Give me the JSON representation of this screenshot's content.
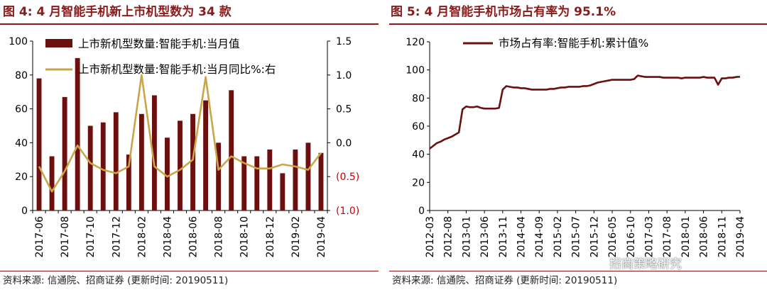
{
  "left_panel": {
    "title": "图 4:  4 月智能手机新上市机型数为 34 款",
    "source": "资料来源: 信通院、招商证券 (更新时间: 20190511)"
  },
  "right_panel": {
    "title": "图 5:  4 月智能手机市场占有率为 95.1%",
    "source": "资料来源: 信通院、招商证券 (更新时间: 20190511)"
  },
  "watermark": "招商策略研究",
  "colors": {
    "bar": "#6b0f0f",
    "gold": "#c9a64a",
    "line": "#6b0f0f",
    "title": "#8b1a1a",
    "negative": "#cc0000"
  },
  "chart_data": [
    {
      "type": "bar",
      "categories": [
        "2017-06",
        "2017-07",
        "2017-08",
        "2017-09",
        "2017-10",
        "2017-11",
        "2017-12",
        "2018-01",
        "2018-02",
        "2018-03",
        "2018-04",
        "2018-05",
        "2018-06",
        "2018-07",
        "2018-08",
        "2018-09",
        "2018-10",
        "2018-11",
        "2018-12",
        "2019-01",
        "2019-02",
        "2019-03",
        "2019-04"
      ],
      "x_tick_labels": [
        "2017-06",
        "2017-08",
        "2017-10",
        "2017-12",
        "2018-02",
        "2018-04",
        "2018-06",
        "2018-08",
        "2018-10",
        "2018-12",
        "2019-02",
        "2019-04"
      ],
      "series": [
        {
          "name": "上市新机型数量:智能手机:当月值",
          "axis": "left",
          "values": [
            78,
            32,
            67,
            90,
            50,
            52,
            58,
            33,
            57,
            68,
            43,
            53,
            57,
            65,
            40,
            71,
            32,
            32,
            36,
            22,
            36,
            40,
            34
          ]
        },
        {
          "name": "上市新机型数量:智能手机:当月同比%:右",
          "axis": "right",
          "type": "line",
          "values": [
            -0.35,
            -0.72,
            -0.42,
            -0.04,
            -0.3,
            -0.4,
            -0.45,
            -0.35,
            1.0,
            -0.35,
            -0.5,
            -0.4,
            -0.25,
            0.97,
            -0.4,
            -0.2,
            -0.3,
            -0.38,
            -0.38,
            -0.32,
            -0.35,
            -0.4,
            -0.15
          ]
        }
      ],
      "ylim_left": [
        0,
        100
      ],
      "left_ticks": [
        "0",
        "20",
        "40",
        "60",
        "80",
        "100"
      ],
      "ylim_right": [
        -1.0,
        1.5
      ],
      "right_ticks": [
        {
          "v": 1.5,
          "label": "1.5"
        },
        {
          "v": 1.0,
          "label": "1.0"
        },
        {
          "v": 0.5,
          "label": "0.5"
        },
        {
          "v": 0.0,
          "label": "0.0"
        },
        {
          "v": -0.5,
          "label": "(0.5)"
        },
        {
          "v": -1.0,
          "label": "(1.0)"
        }
      ],
      "legend_position": "top"
    },
    {
      "type": "line",
      "x": [
        "2012-03",
        "2012-04",
        "2012-05",
        "2012-06",
        "2012-07",
        "2012-08",
        "2012-09",
        "2012-10",
        "2012-11",
        "2012-12",
        "2013-01",
        "2013-02",
        "2013-03",
        "2013-04",
        "2013-05",
        "2013-06",
        "2013-07",
        "2013-08",
        "2013-09",
        "2013-10",
        "2013-11",
        "2013-12",
        "2014-01",
        "2014-02",
        "2014-03",
        "2014-04",
        "2014-05",
        "2014-06",
        "2014-07",
        "2014-08",
        "2014-09",
        "2014-10",
        "2014-11",
        "2014-12",
        "2015-01",
        "2015-02",
        "2015-03",
        "2015-04",
        "2015-05",
        "2015-06",
        "2015-07",
        "2015-08",
        "2015-09",
        "2015-10",
        "2015-11",
        "2015-12",
        "2016-01",
        "2016-02",
        "2016-03",
        "2016-04",
        "2016-05",
        "2016-06",
        "2016-07",
        "2016-08",
        "2016-09",
        "2016-10",
        "2016-11",
        "2016-12",
        "2017-01",
        "2017-02",
        "2017-03",
        "2017-04",
        "2017-05",
        "2017-06",
        "2017-07",
        "2017-08",
        "2017-09",
        "2017-10",
        "2017-11",
        "2017-12",
        "2018-01",
        "2018-02",
        "2018-03",
        "2018-04",
        "2018-05",
        "2018-06",
        "2018-07",
        "2018-08",
        "2018-09",
        "2018-10",
        "2018-11",
        "2018-12",
        "2019-01",
        "2019-02",
        "2019-03",
        "2019-04"
      ],
      "x_tick_labels": [
        "2012-03",
        "2012-08",
        "2013-01",
        "2013-06",
        "2013-11",
        "2014-04",
        "2014-09",
        "2015-02",
        "2015-07",
        "2015-12",
        "2016-05",
        "2016-10",
        "2017-03",
        "2017-08",
        "2018-01",
        "2018-06",
        "2018-11",
        "2019-04"
      ],
      "series": [
        {
          "name": "市场占有率:智能手机:累计值%",
          "values": [
            44,
            46,
            48,
            49,
            50.5,
            51.5,
            52.5,
            54,
            55.5,
            72,
            74,
            73.5,
            73.5,
            74,
            73,
            72.5,
            72.5,
            72.5,
            72.5,
            73,
            86,
            88.5,
            88,
            87.5,
            87.5,
            87,
            87,
            86.5,
            86,
            86,
            86,
            86,
            86,
            86.5,
            86.5,
            87,
            87.5,
            87.5,
            88,
            88,
            88,
            88,
            88.5,
            88.5,
            89,
            90,
            91,
            91.5,
            92,
            92.5,
            93,
            93,
            93,
            93,
            93,
            93,
            93.5,
            96,
            95.5,
            95,
            95,
            95,
            95,
            95,
            94.5,
            94.5,
            94.5,
            94.5,
            94.5,
            94,
            94.5,
            94.5,
            94.5,
            94.5,
            94.5,
            95,
            94.5,
            94.5,
            94.5,
            89.5,
            94,
            94,
            94.5,
            94.5,
            95,
            95.1
          ]
        }
      ],
      "ylim": [
        0,
        120
      ],
      "y_ticks": [
        "0",
        "20",
        "40",
        "60",
        "80",
        "100",
        "120"
      ],
      "legend_position": "top"
    }
  ]
}
